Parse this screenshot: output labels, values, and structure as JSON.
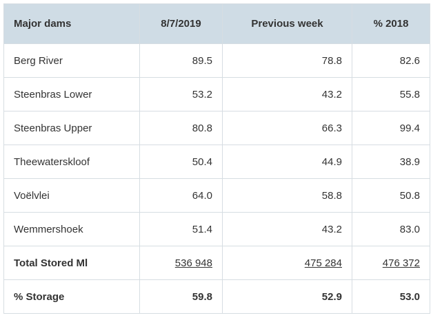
{
  "table": {
    "header": [
      "Major dams",
      "8/7/2019",
      "Previous week",
      "% 2018"
    ],
    "rows": [
      [
        "Berg River",
        "89.5",
        "78.8",
        "82.6"
      ],
      [
        "Steenbras Lower",
        "53.2",
        "43.2",
        "55.8"
      ],
      [
        "Steenbras Upper",
        "80.8",
        "66.3",
        "99.4"
      ],
      [
        "Theewaterskloof",
        "50.4",
        "44.9",
        "38.9"
      ],
      [
        "Voëlvlei",
        "64.0",
        "58.8",
        "50.8"
      ],
      [
        "Wemmershoek",
        "51.4",
        "43.2",
        "83.0"
      ],
      [
        "Total Stored Ml",
        "536 948",
        "475 284",
        "476 372"
      ],
      [
        "% Storage",
        "59.8",
        "52.9",
        "53.0"
      ]
    ]
  }
}
